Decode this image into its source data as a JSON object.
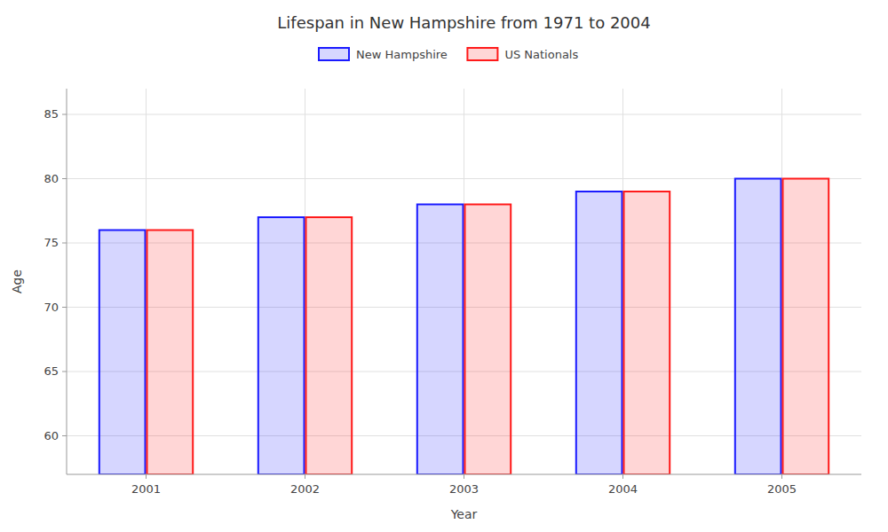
{
  "chart_data": {
    "type": "bar",
    "title": "Lifespan in New Hampshire from 1971 to 2004",
    "xlabel": "Year",
    "ylabel": "Age",
    "categories": [
      "2001",
      "2002",
      "2003",
      "2004",
      "2005"
    ],
    "series": [
      {
        "name": "New Hampshire",
        "color": "#1a1aff",
        "values": [
          76,
          77,
          78,
          79,
          80
        ]
      },
      {
        "name": "US Nationals",
        "color": "#ff1a1a",
        "values": [
          76,
          77,
          78,
          79,
          80
        ]
      }
    ],
    "ylim": [
      57,
      87
    ],
    "yticks": [
      60,
      65,
      70,
      75,
      80,
      85
    ],
    "grid": true,
    "legend": "top"
  }
}
